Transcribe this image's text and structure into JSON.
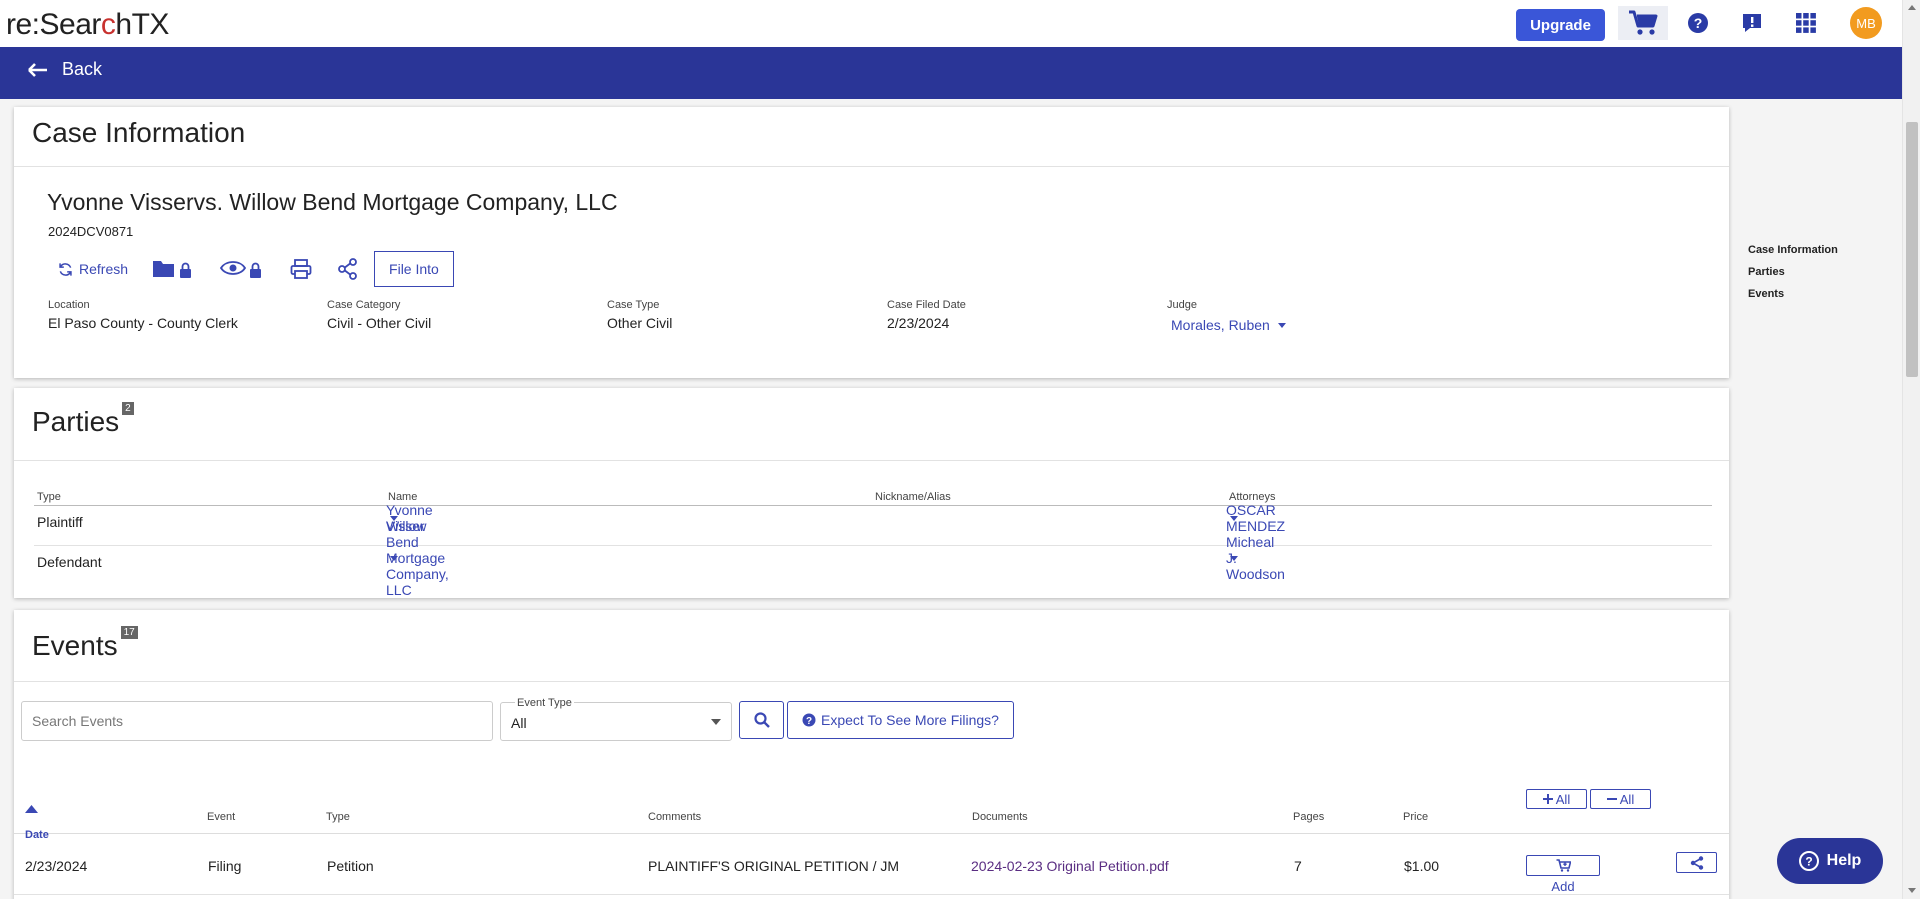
{
  "header": {
    "logo_prefix": "re:Sear",
    "logo_mid": "c",
    "logo_suffix": "h",
    "logo_tx": "TX",
    "upgrade_label": "Upgrade",
    "avatar_initials": "MB",
    "accent_color": "#2a3597",
    "icons": [
      "cart-icon",
      "help-circle-icon",
      "feedback-icon",
      "apps-grid-icon"
    ]
  },
  "backbar": {
    "back_label": "Back"
  },
  "case_info": {
    "title": "Case Information",
    "case_name": "Yvonne Visservs. Willow Bend Mortgage Company, LLC",
    "case_number": "2024DCV0871",
    "refresh_label": "Refresh",
    "file_into_label": "File Into",
    "fields": [
      {
        "label": "Location",
        "value": "El Paso County - County Clerk"
      },
      {
        "label": "Case Category",
        "value": "Civil - Other Civil"
      },
      {
        "label": "Case Type",
        "value": "Other Civil"
      },
      {
        "label": "Case Filed Date",
        "value": "2/23/2024"
      }
    ],
    "judge_label": "Judge",
    "judge_name": "Morales, Ruben"
  },
  "parties": {
    "title": "Parties",
    "count": "2",
    "headers": {
      "type": "Type",
      "name": "Name",
      "nickname": "Nickname/Alias",
      "attorneys": "Attorneys"
    },
    "rows": [
      {
        "type": "Plaintiff",
        "name": "Yvonne Visser",
        "attorney": "OSCAR MENDEZ"
      },
      {
        "type": "Defendant",
        "name": "Willow Bend Mortgage Company, LLC",
        "attorney": "Micheal J. Woodson"
      }
    ]
  },
  "events": {
    "title": "Events",
    "count": "17",
    "search_placeholder": "Search Events",
    "event_type_label": "Event Type",
    "event_type_value": "All",
    "expect_label": "Expect To See More Filings?",
    "headers": {
      "date": "Date",
      "event": "Event",
      "type": "Type",
      "comments": "Comments",
      "documents": "Documents",
      "pages": "Pages",
      "price": "Price"
    },
    "expand_all_label": "All",
    "collapse_all_label": "All",
    "rows": [
      {
        "date": "2/23/2024",
        "event": "Filing",
        "type": "Petition",
        "comments": "PLAINTIFF'S ORIGINAL PETITION / JM",
        "document": "2024-02-23 Original Petition.pdf",
        "pages": "7",
        "price": "$1.00",
        "add_label": "Add"
      }
    ]
  },
  "side_nav": {
    "items": [
      "Case Information",
      "Parties",
      "Events"
    ]
  },
  "help": {
    "label": "Help"
  }
}
